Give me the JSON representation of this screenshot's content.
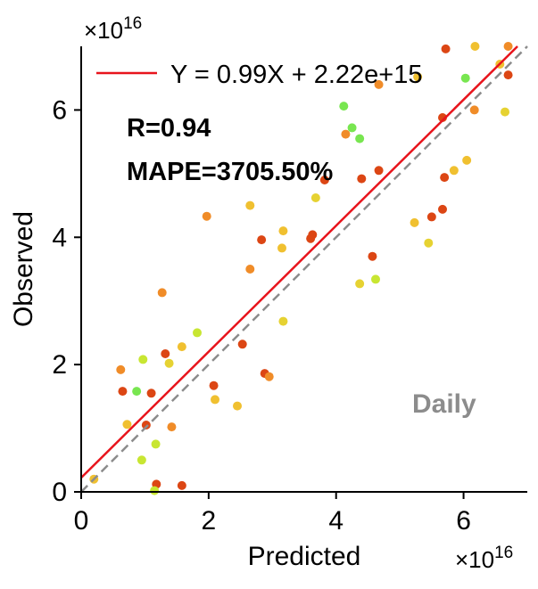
{
  "chart_data": {
    "type": "scatter",
    "xlabel": "Predicted",
    "ylabel": "Observed",
    "x_multiplier": "×10",
    "x_multiplier_exp": "16",
    "y_multiplier": "×10",
    "y_multiplier_exp": "16",
    "xlim": [
      0,
      7.0
    ],
    "ylim": [
      0,
      7.0
    ],
    "xticks": [
      0,
      2,
      4,
      6
    ],
    "yticks": [
      0,
      2,
      4,
      6
    ],
    "tick_labels": [
      "0",
      "2",
      "4",
      "6"
    ],
    "scale_note": "values in units of 1e16",
    "grid": false,
    "legend": {
      "placement": "top-left",
      "label": "Y = 0.99X + 2.22e+15"
    },
    "fit_line": {
      "slope": 0.99,
      "intercept": 0.222,
      "color": "#e8141c"
    },
    "identity_line": {
      "color": "#8c8c8c",
      "style": "dashed"
    },
    "annotations": {
      "r": "R=0.94",
      "mape": "MAPE=3705.50%",
      "tag": "Daily"
    },
    "points": [
      {
        "x": 0.2,
        "y": 0.2,
        "color": "#f0c030"
      },
      {
        "x": 0.62,
        "y": 1.92,
        "color": "#f08c28"
      },
      {
        "x": 0.65,
        "y": 1.58,
        "color": "#dc4614"
      },
      {
        "x": 0.72,
        "y": 1.06,
        "color": "#f0c030"
      },
      {
        "x": 0.87,
        "y": 1.58,
        "color": "#78e650"
      },
      {
        "x": 0.95,
        "y": 0.5,
        "color": "#c8e632"
      },
      {
        "x": 0.97,
        "y": 2.08,
        "color": "#c8e632"
      },
      {
        "x": 1.02,
        "y": 1.05,
        "color": "#dc4614"
      },
      {
        "x": 1.1,
        "y": 1.55,
        "color": "#dc4614"
      },
      {
        "x": 1.17,
        "y": 0.75,
        "color": "#c8e632"
      },
      {
        "x": 1.18,
        "y": 0.12,
        "color": "#dc4614"
      },
      {
        "x": 1.15,
        "y": 0.02,
        "color": "#c8e632"
      },
      {
        "x": 1.27,
        "y": 3.13,
        "color": "#f08c28"
      },
      {
        "x": 1.32,
        "y": 2.17,
        "color": "#dc4614"
      },
      {
        "x": 1.38,
        "y": 2.02,
        "color": "#e6d232"
      },
      {
        "x": 1.42,
        "y": 1.02,
        "color": "#f08c28"
      },
      {
        "x": 1.58,
        "y": 2.28,
        "color": "#f0c030"
      },
      {
        "x": 1.58,
        "y": 0.1,
        "color": "#dc4614"
      },
      {
        "x": 1.82,
        "y": 2.5,
        "color": "#c8e632"
      },
      {
        "x": 1.97,
        "y": 4.33,
        "color": "#f08c28"
      },
      {
        "x": 2.08,
        "y": 1.67,
        "color": "#dc4614"
      },
      {
        "x": 2.1,
        "y": 1.45,
        "color": "#f0c030"
      },
      {
        "x": 2.45,
        "y": 1.35,
        "color": "#f0c030"
      },
      {
        "x": 2.53,
        "y": 2.32,
        "color": "#dc4614"
      },
      {
        "x": 2.65,
        "y": 4.5,
        "color": "#f0c030"
      },
      {
        "x": 2.65,
        "y": 3.5,
        "color": "#f08c28"
      },
      {
        "x": 2.83,
        "y": 3.96,
        "color": "#dc4614"
      },
      {
        "x": 2.88,
        "y": 1.86,
        "color": "#dc4614"
      },
      {
        "x": 2.95,
        "y": 1.81,
        "color": "#f08c28"
      },
      {
        "x": 3.15,
        "y": 3.83,
        "color": "#f0c030"
      },
      {
        "x": 3.17,
        "y": 4.1,
        "color": "#f0c030"
      },
      {
        "x": 3.17,
        "y": 2.68,
        "color": "#e6d232"
      },
      {
        "x": 3.6,
        "y": 3.98,
        "color": "#dc4614"
      },
      {
        "x": 3.63,
        "y": 4.04,
        "color": "#dc4614"
      },
      {
        "x": 3.68,
        "y": 4.62,
        "color": "#e6d232"
      },
      {
        "x": 3.82,
        "y": 4.9,
        "color": "#dc4614"
      },
      {
        "x": 4.12,
        "y": 6.06,
        "color": "#78e650"
      },
      {
        "x": 4.15,
        "y": 5.62,
        "color": "#f08c28"
      },
      {
        "x": 4.25,
        "y": 5.72,
        "color": "#78e650"
      },
      {
        "x": 4.37,
        "y": 5.55,
        "color": "#78e650"
      },
      {
        "x": 4.37,
        "y": 3.27,
        "color": "#e6d232"
      },
      {
        "x": 4.4,
        "y": 4.92,
        "color": "#dc4614"
      },
      {
        "x": 4.57,
        "y": 3.7,
        "color": "#dc4614"
      },
      {
        "x": 4.62,
        "y": 3.34,
        "color": "#c8e632"
      },
      {
        "x": 4.67,
        "y": 5.05,
        "color": "#dc4614"
      },
      {
        "x": 4.67,
        "y": 6.4,
        "color": "#f08c28"
      },
      {
        "x": 5.23,
        "y": 4.23,
        "color": "#f0c030"
      },
      {
        "x": 5.28,
        "y": 6.52,
        "color": "#f0c030"
      },
      {
        "x": 5.45,
        "y": 3.91,
        "color": "#e6d232"
      },
      {
        "x": 5.5,
        "y": 4.32,
        "color": "#dc4614"
      },
      {
        "x": 5.67,
        "y": 4.44,
        "color": "#dc4614"
      },
      {
        "x": 5.67,
        "y": 5.88,
        "color": "#dc4614"
      },
      {
        "x": 5.7,
        "y": 4.94,
        "color": "#dc4614"
      },
      {
        "x": 5.85,
        "y": 5.05,
        "color": "#f0c030"
      },
      {
        "x": 6.03,
        "y": 6.5,
        "color": "#78e650"
      },
      {
        "x": 6.05,
        "y": 5.21,
        "color": "#f0c030"
      },
      {
        "x": 6.17,
        "y": 6.0,
        "color": "#f08c28"
      },
      {
        "x": 6.18,
        "y": 7.0,
        "color": "#f0c030"
      },
      {
        "x": 5.72,
        "y": 6.96,
        "color": "#dc4614"
      },
      {
        "x": 6.57,
        "y": 6.72,
        "color": "#f0c030"
      },
      {
        "x": 6.65,
        "y": 5.97,
        "color": "#e6d232"
      },
      {
        "x": 6.7,
        "y": 6.55,
        "color": "#dc4614"
      },
      {
        "x": 6.7,
        "y": 7.0,
        "color": "#f08c28"
      }
    ]
  }
}
